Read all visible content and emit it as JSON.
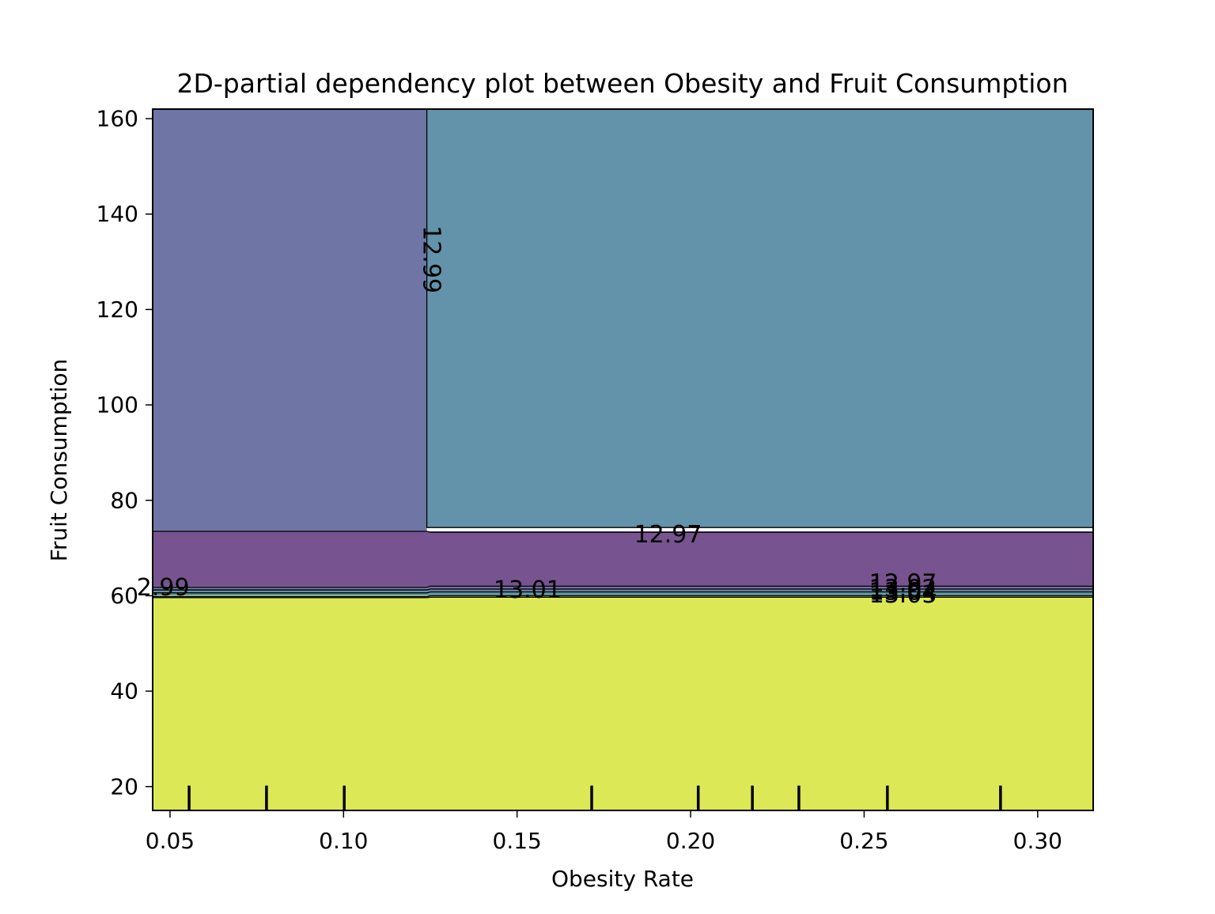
{
  "chart_data": {
    "type": "contour",
    "title": "2D-partial dependency plot between Obesity and Fruit Consumption",
    "xlabel": "Obesity Rate",
    "ylabel": "Fruit Consumption",
    "xlim": [
      0.045,
      0.316
    ],
    "ylim": [
      15,
      162
    ],
    "xticks": [
      {
        "value": 0.05,
        "label": "0.05"
      },
      {
        "value": 0.1,
        "label": "0.10"
      },
      {
        "value": 0.15,
        "label": "0.15"
      },
      {
        "value": 0.2,
        "label": "0.20"
      },
      {
        "value": 0.25,
        "label": "0.25"
      },
      {
        "value": 0.3,
        "label": "0.30"
      }
    ],
    "yticks": [
      {
        "value": 20,
        "label": "20"
      },
      {
        "value": 40,
        "label": "40"
      },
      {
        "value": 60,
        "label": "60"
      },
      {
        "value": 80,
        "label": "80"
      },
      {
        "value": 100,
        "label": "100"
      },
      {
        "value": 120,
        "label": "120"
      },
      {
        "value": 140,
        "label": "140"
      },
      {
        "value": 160,
        "label": "160"
      }
    ],
    "regions": [
      {
        "x": [
          0.045,
          0.124
        ],
        "y": [
          73.5,
          162
        ],
        "color": "#6f76a6"
      },
      {
        "x": [
          0.124,
          0.316
        ],
        "y": [
          74.3,
          162
        ],
        "color": "#6393aa"
      },
      {
        "x": [
          0.045,
          0.316
        ],
        "y": [
          62,
          73.5
        ],
        "color": "#77548f"
      },
      {
        "x": [
          0.045,
          0.316
        ],
        "y": [
          61,
          62
        ],
        "color": "#6f6f9f"
      },
      {
        "x": [
          0.045,
          0.316
        ],
        "y": [
          60,
          61
        ],
        "color": "#5e97a4"
      },
      {
        "x": [
          0.045,
          0.316
        ],
        "y": [
          15,
          60
        ],
        "color": "#dce856"
      }
    ],
    "contour_lines": [
      {
        "points": [
          [
            0.124,
            162
          ],
          [
            0.124,
            74.3
          ],
          [
            0.316,
            74.3
          ]
        ]
      },
      {
        "points": [
          [
            0.045,
            73.5
          ],
          [
            0.124,
            73.5
          ],
          [
            0.125,
            73.3
          ],
          [
            0.316,
            73.3
          ]
        ]
      },
      {
        "points": [
          [
            0.045,
            61.8
          ],
          [
            0.124,
            61.8
          ],
          [
            0.125,
            62.0
          ],
          [
            0.316,
            62.0
          ]
        ]
      },
      {
        "points": [
          [
            0.045,
            61.2
          ],
          [
            0.124,
            61.2
          ],
          [
            0.125,
            61.4
          ],
          [
            0.316,
            61.4
          ]
        ]
      },
      {
        "points": [
          [
            0.045,
            60.6
          ],
          [
            0.124,
            60.6
          ],
          [
            0.125,
            60.8
          ],
          [
            0.316,
            60.8
          ]
        ]
      },
      {
        "points": [
          [
            0.045,
            59.8
          ],
          [
            0.124,
            59.8
          ],
          [
            0.125,
            60.0
          ],
          [
            0.316,
            60.0
          ]
        ]
      },
      {
        "points": [
          [
            0.045,
            59.6
          ],
          [
            0.124,
            59.6
          ],
          [
            0.125,
            59.7
          ],
          [
            0.316,
            59.7
          ]
        ]
      }
    ],
    "contour_labels": [
      {
        "text": "12.99",
        "x": 0.125,
        "y": 130.5,
        "rotate": 90
      },
      {
        "text": "12.97",
        "x": 0.1935,
        "y": 72.6,
        "rotate": 0
      },
      {
        "text": "2.99",
        "x": 0.048,
        "y": 61.5,
        "rotate": 0
      },
      {
        "text": "13.01",
        "x": 0.153,
        "y": 61.0,
        "rotate": 0
      },
      {
        "text": "12.97",
        "x": 0.2612,
        "y": 62.4,
        "rotate": 0
      },
      {
        "text": "13.02",
        "x": 0.2612,
        "y": 61.2,
        "rotate": 0
      },
      {
        "text": "13.04",
        "x": 0.2612,
        "y": 60.6,
        "rotate": 0
      },
      {
        "text": "13.03",
        "x": 0.2612,
        "y": 60.0,
        "rotate": 0
      }
    ],
    "rug_x": [
      0.0555,
      0.0778,
      0.1002,
      0.1715,
      0.2022,
      0.2178,
      0.2312,
      0.2567,
      0.2893
    ],
    "rug_height": [
      15,
      20.2
    ],
    "grid": false,
    "legend": "none"
  }
}
